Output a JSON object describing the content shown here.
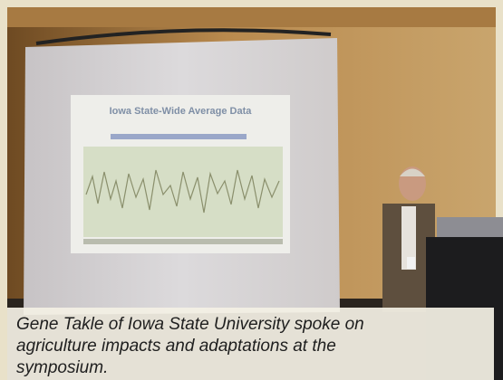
{
  "photo": {
    "slide_title": "Iowa State-Wide Average Data"
  },
  "caption": "Gene Takle of Iowa State University spoke on agriculture impacts and adaptations at the symposium."
}
